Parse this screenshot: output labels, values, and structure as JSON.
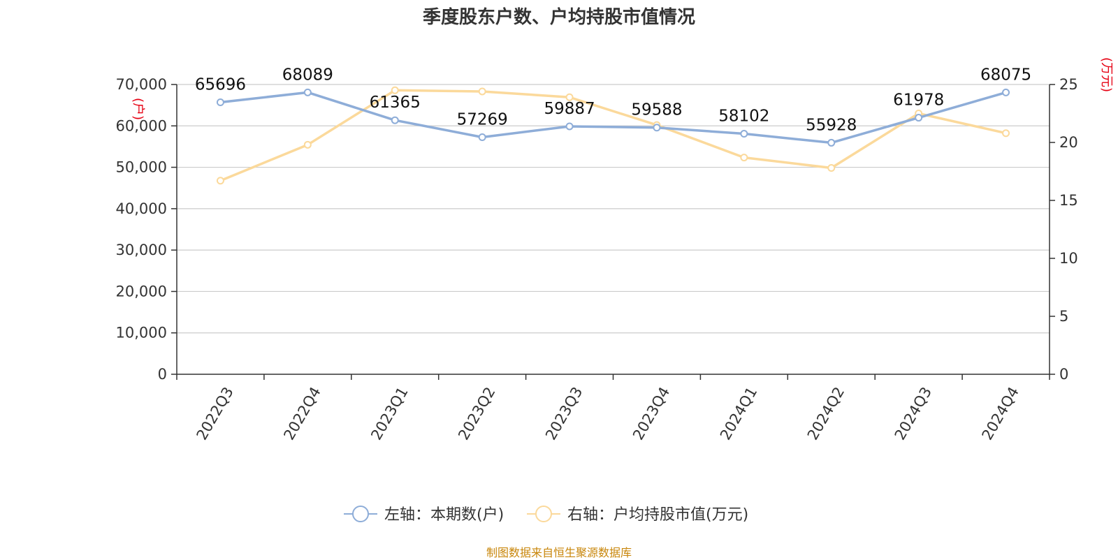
{
  "chart_data": {
    "type": "line",
    "title": "季度股东户数、户均持股市值情况",
    "categories": [
      "2022Q3",
      "2022Q4",
      "2023Q1",
      "2023Q2",
      "2023Q3",
      "2023Q4",
      "2024Q1",
      "2024Q2",
      "2024Q3",
      "2024Q4"
    ],
    "series": [
      {
        "name": "左轴：本期数(户)",
        "axis": "left",
        "color": "#8eadd8",
        "values": [
          65696,
          68089,
          61365,
          57269,
          59887,
          59588,
          58102,
          55928,
          61978,
          68075
        ],
        "show_labels": true
      },
      {
        "name": "右轴：户均持股市值(万元)",
        "axis": "right",
        "color": "#fbd99b",
        "values": [
          16.7,
          19.8,
          24.5,
          24.4,
          23.9,
          21.5,
          18.7,
          17.8,
          22.5,
          20.8
        ],
        "show_labels": false
      }
    ],
    "y_left": {
      "label": "(户)",
      "ylim": [
        0,
        70000
      ],
      "ticks": [
        0,
        10000,
        20000,
        30000,
        40000,
        50000,
        60000,
        70000
      ],
      "tick_labels": [
        "0",
        "10,000",
        "20,000",
        "30,000",
        "40,000",
        "50,000",
        "60,000",
        "70,000"
      ]
    },
    "y_right": {
      "label": "(万元)",
      "ylim": [
        0,
        25
      ],
      "ticks": [
        0,
        5,
        10,
        15,
        20,
        25
      ],
      "tick_labels": [
        "0",
        "5",
        "10",
        "15",
        "20",
        "25"
      ]
    },
    "grid": true,
    "legend_position": "bottom-center"
  },
  "footer": "制图数据来自恒生聚源数据库"
}
